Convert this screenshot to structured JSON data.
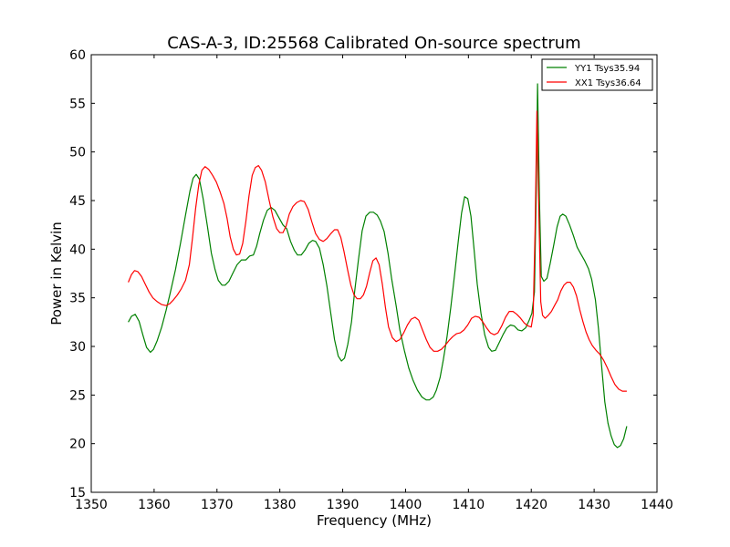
{
  "chart_data": {
    "type": "line",
    "title": "CAS-A-3, ID:25568 Calibrated On-source spectrum",
    "xlabel": "Frequency (MHz)",
    "ylabel": "Power in Kelvin",
    "xlim": [
      1350,
      1440
    ],
    "ylim": [
      15,
      60
    ],
    "xticks": [
      1350,
      1360,
      1370,
      1380,
      1390,
      1400,
      1410,
      1420,
      1430,
      1440
    ],
    "yticks": [
      15,
      20,
      25,
      30,
      35,
      40,
      45,
      50,
      55,
      60
    ],
    "grid": false,
    "legend_position": "top-right",
    "series": [
      {
        "name": "YY1 Tsys35.94",
        "color": "#008000",
        "points": [
          [
            1355.9,
            32.5
          ],
          [
            1356.4,
            33.1
          ],
          [
            1357.0,
            33.3
          ],
          [
            1357.6,
            32.6
          ],
          [
            1358.2,
            31.2
          ],
          [
            1358.8,
            29.9
          ],
          [
            1359.4,
            29.4
          ],
          [
            1359.9,
            29.7
          ],
          [
            1360.5,
            30.6
          ],
          [
            1361.2,
            32.0
          ],
          [
            1361.9,
            33.7
          ],
          [
            1362.6,
            35.6
          ],
          [
            1363.4,
            37.9
          ],
          [
            1364.2,
            40.6
          ],
          [
            1365.0,
            43.5
          ],
          [
            1365.7,
            46.0
          ],
          [
            1366.2,
            47.3
          ],
          [
            1366.7,
            47.7
          ],
          [
            1367.2,
            47.2
          ],
          [
            1367.8,
            45.2
          ],
          [
            1368.5,
            42.3
          ],
          [
            1369.1,
            39.6
          ],
          [
            1369.7,
            37.9
          ],
          [
            1370.2,
            36.8
          ],
          [
            1370.8,
            36.3
          ],
          [
            1371.3,
            36.3
          ],
          [
            1371.9,
            36.7
          ],
          [
            1372.5,
            37.5
          ],
          [
            1373.2,
            38.4
          ],
          [
            1373.9,
            38.9
          ],
          [
            1374.6,
            38.9
          ],
          [
            1375.2,
            39.3
          ],
          [
            1375.8,
            39.4
          ],
          [
            1376.3,
            40.3
          ],
          [
            1376.8,
            41.6
          ],
          [
            1377.4,
            43.0
          ],
          [
            1378.0,
            44.0
          ],
          [
            1378.6,
            44.3
          ],
          [
            1379.2,
            44.0
          ],
          [
            1379.8,
            43.3
          ],
          [
            1380.5,
            42.5
          ],
          [
            1381.1,
            42.1
          ],
          [
            1381.7,
            40.8
          ],
          [
            1382.3,
            39.9
          ],
          [
            1382.8,
            39.4
          ],
          [
            1383.4,
            39.4
          ],
          [
            1384.0,
            39.9
          ],
          [
            1384.6,
            40.6
          ],
          [
            1385.2,
            40.9
          ],
          [
            1385.7,
            40.8
          ],
          [
            1386.3,
            40.1
          ],
          [
            1386.9,
            38.4
          ],
          [
            1387.5,
            36.2
          ],
          [
            1388.1,
            33.4
          ],
          [
            1388.7,
            30.7
          ],
          [
            1389.3,
            29.0
          ],
          [
            1389.8,
            28.5
          ],
          [
            1390.3,
            28.8
          ],
          [
            1390.8,
            30.2
          ],
          [
            1391.4,
            32.5
          ],
          [
            1391.9,
            35.6
          ],
          [
            1392.5,
            38.9
          ],
          [
            1393.1,
            41.9
          ],
          [
            1393.7,
            43.4
          ],
          [
            1394.3,
            43.8
          ],
          [
            1394.9,
            43.8
          ],
          [
            1395.5,
            43.5
          ],
          [
            1396.0,
            42.9
          ],
          [
            1396.6,
            41.8
          ],
          [
            1397.2,
            39.6
          ],
          [
            1397.8,
            36.9
          ],
          [
            1398.5,
            34.2
          ],
          [
            1399.1,
            31.7
          ],
          [
            1399.8,
            29.6
          ],
          [
            1400.5,
            27.8
          ],
          [
            1401.2,
            26.5
          ],
          [
            1401.9,
            25.5
          ],
          [
            1402.6,
            24.8
          ],
          [
            1403.3,
            24.5
          ],
          [
            1403.8,
            24.5
          ],
          [
            1404.4,
            24.8
          ],
          [
            1404.9,
            25.5
          ],
          [
            1405.5,
            26.8
          ],
          [
            1406.0,
            28.6
          ],
          [
            1406.6,
            31.0
          ],
          [
            1407.2,
            34.0
          ],
          [
            1407.8,
            37.4
          ],
          [
            1408.4,
            40.9
          ],
          [
            1408.9,
            43.7
          ],
          [
            1409.4,
            45.4
          ],
          [
            1409.9,
            45.2
          ],
          [
            1410.4,
            43.4
          ],
          [
            1410.9,
            40.0
          ],
          [
            1411.4,
            36.4
          ],
          [
            1412.0,
            33.4
          ],
          [
            1412.6,
            31.2
          ],
          [
            1413.2,
            29.9
          ],
          [
            1413.7,
            29.5
          ],
          [
            1414.3,
            29.6
          ],
          [
            1414.9,
            30.4
          ],
          [
            1415.5,
            31.2
          ],
          [
            1416.1,
            31.9
          ],
          [
            1416.7,
            32.2
          ],
          [
            1417.3,
            32.1
          ],
          [
            1417.9,
            31.7
          ],
          [
            1418.5,
            31.6
          ],
          [
            1419.1,
            31.9
          ],
          [
            1419.6,
            32.6
          ],
          [
            1420.1,
            33.4
          ],
          [
            1420.5,
            35.6
          ],
          [
            1420.8,
            46.0
          ],
          [
            1421.0,
            57.0
          ],
          [
            1421.3,
            45.0
          ],
          [
            1421.6,
            37.2
          ],
          [
            1422.0,
            36.7
          ],
          [
            1422.5,
            37.0
          ],
          [
            1423.0,
            38.5
          ],
          [
            1423.6,
            40.5
          ],
          [
            1424.1,
            42.3
          ],
          [
            1424.6,
            43.4
          ],
          [
            1425.0,
            43.6
          ],
          [
            1425.5,
            43.4
          ],
          [
            1426.1,
            42.5
          ],
          [
            1426.7,
            41.4
          ],
          [
            1427.3,
            40.2
          ],
          [
            1427.9,
            39.5
          ],
          [
            1428.5,
            38.8
          ],
          [
            1429.1,
            38.0
          ],
          [
            1429.6,
            36.9
          ],
          [
            1430.2,
            34.8
          ],
          [
            1430.7,
            31.8
          ],
          [
            1431.2,
            27.9
          ],
          [
            1431.7,
            24.3
          ],
          [
            1432.2,
            22.1
          ],
          [
            1432.7,
            20.8
          ],
          [
            1433.2,
            19.9
          ],
          [
            1433.7,
            19.6
          ],
          [
            1434.2,
            19.8
          ],
          [
            1434.7,
            20.5
          ],
          [
            1435.2,
            21.8
          ]
        ]
      },
      {
        "name": "XX1 Tsys36.64",
        "color": "#ff0000",
        "points": [
          [
            1355.9,
            36.6
          ],
          [
            1356.4,
            37.4
          ],
          [
            1356.9,
            37.8
          ],
          [
            1357.4,
            37.7
          ],
          [
            1358.0,
            37.2
          ],
          [
            1358.6,
            36.4
          ],
          [
            1359.2,
            35.6
          ],
          [
            1359.8,
            35.0
          ],
          [
            1360.5,
            34.6
          ],
          [
            1361.2,
            34.3
          ],
          [
            1361.9,
            34.2
          ],
          [
            1362.5,
            34.4
          ],
          [
            1363.1,
            34.8
          ],
          [
            1363.7,
            35.3
          ],
          [
            1364.3,
            35.9
          ],
          [
            1365.0,
            36.8
          ],
          [
            1365.6,
            38.4
          ],
          [
            1366.1,
            41.1
          ],
          [
            1366.6,
            44.2
          ],
          [
            1367.1,
            46.6
          ],
          [
            1367.6,
            48.1
          ],
          [
            1368.1,
            48.5
          ],
          [
            1368.7,
            48.2
          ],
          [
            1369.3,
            47.6
          ],
          [
            1369.9,
            46.9
          ],
          [
            1370.5,
            45.9
          ],
          [
            1371.1,
            44.7
          ],
          [
            1371.6,
            43.2
          ],
          [
            1372.1,
            41.3
          ],
          [
            1372.6,
            40.0
          ],
          [
            1373.1,
            39.4
          ],
          [
            1373.6,
            39.5
          ],
          [
            1374.1,
            40.6
          ],
          [
            1374.6,
            42.9
          ],
          [
            1375.1,
            45.5
          ],
          [
            1375.6,
            47.6
          ],
          [
            1376.1,
            48.4
          ],
          [
            1376.6,
            48.6
          ],
          [
            1377.1,
            48.1
          ],
          [
            1377.7,
            46.9
          ],
          [
            1378.3,
            45.0
          ],
          [
            1378.9,
            43.3
          ],
          [
            1379.5,
            42.1
          ],
          [
            1380.0,
            41.7
          ],
          [
            1380.5,
            41.7
          ],
          [
            1381.0,
            42.4
          ],
          [
            1381.5,
            43.6
          ],
          [
            1382.1,
            44.4
          ],
          [
            1382.7,
            44.8
          ],
          [
            1383.3,
            45.0
          ],
          [
            1383.9,
            44.9
          ],
          [
            1384.5,
            44.1
          ],
          [
            1385.1,
            42.8
          ],
          [
            1385.7,
            41.6
          ],
          [
            1386.3,
            41.0
          ],
          [
            1386.9,
            40.8
          ],
          [
            1387.5,
            41.1
          ],
          [
            1388.1,
            41.6
          ],
          [
            1388.7,
            42.0
          ],
          [
            1389.2,
            42.0
          ],
          [
            1389.7,
            41.2
          ],
          [
            1390.2,
            39.8
          ],
          [
            1390.8,
            37.8
          ],
          [
            1391.3,
            36.3
          ],
          [
            1391.8,
            35.3
          ],
          [
            1392.3,
            34.9
          ],
          [
            1392.8,
            34.9
          ],
          [
            1393.3,
            35.3
          ],
          [
            1393.8,
            36.2
          ],
          [
            1394.3,
            37.6
          ],
          [
            1394.8,
            38.8
          ],
          [
            1395.3,
            39.1
          ],
          [
            1395.8,
            38.4
          ],
          [
            1396.3,
            36.4
          ],
          [
            1396.8,
            34.0
          ],
          [
            1397.3,
            32.0
          ],
          [
            1397.9,
            30.9
          ],
          [
            1398.5,
            30.5
          ],
          [
            1399.1,
            30.7
          ],
          [
            1399.7,
            31.4
          ],
          [
            1400.3,
            32.2
          ],
          [
            1400.9,
            32.8
          ],
          [
            1401.5,
            33.0
          ],
          [
            1402.1,
            32.7
          ],
          [
            1402.7,
            31.7
          ],
          [
            1403.3,
            30.7
          ],
          [
            1403.9,
            29.9
          ],
          [
            1404.5,
            29.5
          ],
          [
            1405.1,
            29.5
          ],
          [
            1405.7,
            29.7
          ],
          [
            1406.3,
            30.1
          ],
          [
            1406.9,
            30.6
          ],
          [
            1407.5,
            31.0
          ],
          [
            1408.1,
            31.3
          ],
          [
            1408.7,
            31.4
          ],
          [
            1409.3,
            31.7
          ],
          [
            1409.9,
            32.2
          ],
          [
            1410.5,
            32.9
          ],
          [
            1411.1,
            33.1
          ],
          [
            1411.7,
            33.0
          ],
          [
            1412.3,
            32.5
          ],
          [
            1412.9,
            31.9
          ],
          [
            1413.5,
            31.4
          ],
          [
            1414.1,
            31.2
          ],
          [
            1414.7,
            31.4
          ],
          [
            1415.3,
            32.1
          ],
          [
            1415.9,
            33.0
          ],
          [
            1416.5,
            33.6
          ],
          [
            1417.1,
            33.6
          ],
          [
            1417.7,
            33.3
          ],
          [
            1418.3,
            32.9
          ],
          [
            1418.9,
            32.4
          ],
          [
            1419.5,
            32.1
          ],
          [
            1420.0,
            32.0
          ],
          [
            1420.3,
            33.2
          ],
          [
            1420.6,
            42.0
          ],
          [
            1420.9,
            54.2
          ],
          [
            1421.2,
            44.0
          ],
          [
            1421.5,
            34.6
          ],
          [
            1421.8,
            33.2
          ],
          [
            1422.2,
            32.9
          ],
          [
            1422.7,
            33.2
          ],
          [
            1423.2,
            33.6
          ],
          [
            1423.7,
            34.2
          ],
          [
            1424.2,
            34.8
          ],
          [
            1424.7,
            35.7
          ],
          [
            1425.2,
            36.3
          ],
          [
            1425.7,
            36.6
          ],
          [
            1426.2,
            36.6
          ],
          [
            1426.7,
            36.1
          ],
          [
            1427.2,
            35.2
          ],
          [
            1427.7,
            33.8
          ],
          [
            1428.2,
            32.6
          ],
          [
            1428.7,
            31.5
          ],
          [
            1429.2,
            30.7
          ],
          [
            1429.7,
            30.1
          ],
          [
            1430.3,
            29.6
          ],
          [
            1430.9,
            29.2
          ],
          [
            1431.5,
            28.6
          ],
          [
            1432.1,
            27.8
          ],
          [
            1432.7,
            26.9
          ],
          [
            1433.3,
            26.1
          ],
          [
            1433.9,
            25.6
          ],
          [
            1434.5,
            25.4
          ],
          [
            1435.2,
            25.4
          ]
        ]
      }
    ]
  }
}
